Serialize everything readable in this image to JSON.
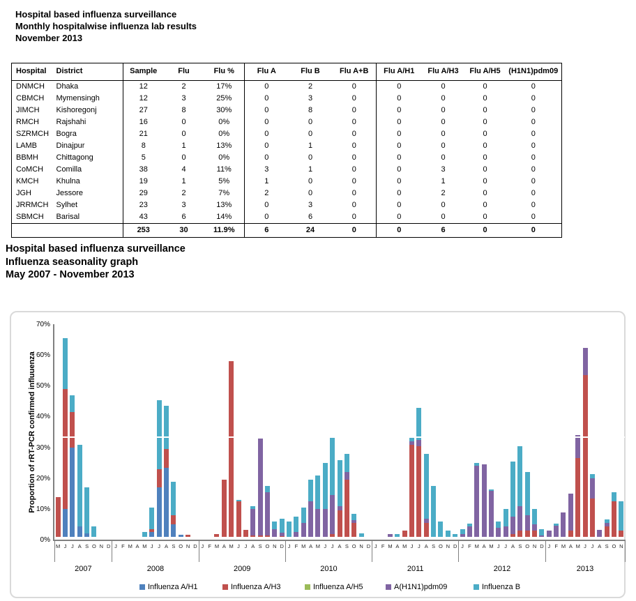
{
  "report": {
    "title_lines": [
      "Hospital based influenza surveillance",
      "Monthly hospitalwise influenza lab results",
      "November 2013"
    ],
    "section2_lines": [
      "Hospital based influenza surveillance",
      "Influenza seasonality graph",
      "May 2007 - November 2013"
    ]
  },
  "table": {
    "headers": [
      "Hospital",
      "District",
      "Sample",
      "Flu",
      "Flu %",
      "Flu A",
      "Flu B",
      "Flu A+B",
      "Flu A/H1",
      "Flu A/H3",
      "Flu A/H5",
      "(H1N1)pdm09"
    ],
    "rows": [
      [
        "DNMCH",
        "Dhaka",
        "12",
        "2",
        "17%",
        "0",
        "2",
        "0",
        "0",
        "0",
        "0",
        "0"
      ],
      [
        "CBMCH",
        "Mymensingh",
        "12",
        "3",
        "25%",
        "0",
        "3",
        "0",
        "0",
        "0",
        "0",
        "0"
      ],
      [
        "JIMCH",
        "Kishoregonj",
        "27",
        "8",
        "30%",
        "0",
        "8",
        "0",
        "0",
        "0",
        "0",
        "0"
      ],
      [
        "RMCH",
        "Rajshahi",
        "16",
        "0",
        "0%",
        "0",
        "0",
        "0",
        "0",
        "0",
        "0",
        "0"
      ],
      [
        "SZRMCH",
        "Bogra",
        "21",
        "0",
        "0%",
        "0",
        "0",
        "0",
        "0",
        "0",
        "0",
        "0"
      ],
      [
        "LAMB",
        "Dinajpur",
        "8",
        "1",
        "13%",
        "0",
        "1",
        "0",
        "0",
        "0",
        "0",
        "0"
      ],
      [
        "BBMH",
        "Chittagong",
        "5",
        "0",
        "0%",
        "0",
        "0",
        "0",
        "0",
        "0",
        "0",
        "0"
      ],
      [
        "CoMCH",
        "Comilla",
        "38",
        "4",
        "11%",
        "3",
        "1",
        "0",
        "0",
        "3",
        "0",
        "0"
      ],
      [
        "KMCH",
        "Khulna",
        "19",
        "1",
        "5%",
        "1",
        "0",
        "0",
        "0",
        "1",
        "0",
        "0"
      ],
      [
        "JGH",
        "Jessore",
        "29",
        "2",
        "7%",
        "2",
        "0",
        "0",
        "0",
        "2",
        "0",
        "0"
      ],
      [
        "JRRMCH",
        "Sylhet",
        "23",
        "3",
        "13%",
        "0",
        "3",
        "0",
        "0",
        "0",
        "0",
        "0"
      ],
      [
        "SBMCH",
        "Barisal",
        "43",
        "6",
        "14%",
        "0",
        "6",
        "0",
        "0",
        "0",
        "0",
        "0"
      ]
    ],
    "total": [
      "",
      "",
      "253",
      "30",
      "11.9%",
      "6",
      "24",
      "0",
      "0",
      "6",
      "0",
      "0"
    ]
  },
  "chart_data": {
    "type": "bar",
    "stacked": true,
    "ylabel": "Proportion of rRT-PCR confirmed influuenza",
    "ylim": [
      0,
      70
    ],
    "yticks": [
      "0%",
      "10%",
      "20%",
      "30%",
      "40%",
      "50%",
      "60%",
      "70%"
    ],
    "grid": false,
    "reference_line_pct": 33.3,
    "legend_position": "bottom",
    "series_names": [
      "Influenza A/H1",
      "Influenza A/H3",
      "Influenza A/H5",
      "A(H1N1)pdm09",
      "Influenza B"
    ],
    "series_colors": [
      "#4F81BD",
      "#C0504D",
      "#9BBB59",
      "#8064A2",
      "#4BACC6"
    ],
    "series_order_note": "values per month are stacked bottom-to-top in series_names order, units = percent",
    "years": [
      {
        "year": "2007",
        "months": [
          "M",
          "J",
          "J",
          "A",
          "S",
          "O",
          "N",
          "D"
        ],
        "values": [
          [
            0,
            13,
            0,
            0,
            0
          ],
          [
            9,
            39,
            0,
            0,
            16.5
          ],
          [
            29,
            11.5,
            0,
            0,
            5.5
          ],
          [
            3.5,
            0,
            0,
            0,
            26.5
          ],
          [
            1.2,
            0,
            0,
            0,
            14.8
          ],
          [
            0,
            0,
            0,
            0,
            3.5
          ],
          [
            0,
            0,
            0,
            0,
            0
          ],
          [
            0,
            0,
            0,
            0,
            0
          ]
        ]
      },
      {
        "year": "2008",
        "months": [
          "J",
          "F",
          "M",
          "A",
          "M",
          "J",
          "J",
          "A",
          "S",
          "O",
          "N",
          "D"
        ],
        "values": [
          [
            0,
            0,
            0,
            0,
            0
          ],
          [
            0,
            0,
            0,
            0,
            0
          ],
          [
            0,
            0,
            0,
            0,
            0
          ],
          [
            0,
            0,
            0,
            0,
            0
          ],
          [
            0,
            0,
            0,
            0,
            1.5
          ],
          [
            1.5,
            1,
            0,
            0,
            7
          ],
          [
            16,
            6,
            0,
            0,
            22.5
          ],
          [
            22.5,
            6,
            0,
            0,
            14
          ],
          [
            4,
            3,
            0,
            0,
            11
          ],
          [
            0.7,
            0,
            0,
            0,
            0
          ],
          [
            0,
            0.7,
            0,
            0,
            0
          ],
          [
            0,
            0,
            0,
            0,
            0
          ]
        ]
      },
      {
        "year": "2009",
        "months": [
          "J",
          "F",
          "M",
          "A",
          "M",
          "J",
          "J",
          "A",
          "S",
          "O",
          "N",
          "D"
        ],
        "values": [
          [
            0,
            0,
            0,
            0,
            0
          ],
          [
            0,
            0,
            0,
            0,
            0
          ],
          [
            0,
            0.8,
            0,
            0,
            0
          ],
          [
            0,
            18.5,
            0,
            0,
            0
          ],
          [
            0,
            57,
            0,
            0,
            0
          ],
          [
            0,
            11.5,
            0,
            0,
            0.5
          ],
          [
            0,
            2.3,
            0,
            0,
            0
          ],
          [
            0,
            0.5,
            0,
            8.5,
            1
          ],
          [
            0,
            0.5,
            0,
            31.5,
            0
          ],
          [
            0,
            0.5,
            0,
            14,
            2
          ],
          [
            0,
            0,
            0,
            2.5,
            2.5
          ],
          [
            0,
            0.3,
            0,
            1,
            4.5
          ]
        ]
      },
      {
        "year": "2010",
        "months": [
          "J",
          "F",
          "M",
          "A",
          "M",
          "J",
          "J",
          "A",
          "S",
          "O",
          "N",
          "D"
        ],
        "values": [
          [
            0,
            0,
            0,
            0,
            5
          ],
          [
            0,
            0,
            0,
            1.5,
            5
          ],
          [
            0,
            0,
            0,
            4.5,
            5
          ],
          [
            0,
            0,
            0,
            11.5,
            7
          ],
          [
            0,
            0,
            0,
            9,
            11
          ],
          [
            0,
            0,
            0,
            9,
            15
          ],
          [
            0,
            1,
            0,
            12.5,
            19
          ],
          [
            0,
            8.5,
            0,
            1.5,
            15
          ],
          [
            0,
            18.5,
            0,
            2.5,
            6
          ],
          [
            0,
            4.5,
            0,
            1,
            2
          ],
          [
            0,
            0,
            0,
            0,
            1.2
          ],
          [
            0,
            0,
            0,
            0,
            0
          ]
        ]
      },
      {
        "year": "2011",
        "months": [
          "J",
          "F",
          "M",
          "A",
          "M",
          "J",
          "J",
          "A",
          "S",
          "O",
          "N",
          "D"
        ],
        "values": [
          [
            0,
            0,
            0,
            0,
            0
          ],
          [
            0,
            0,
            0,
            0,
            0
          ],
          [
            0,
            0,
            0,
            0.8,
            0
          ],
          [
            0,
            0,
            0,
            0,
            1
          ],
          [
            0,
            2,
            0,
            0,
            0
          ],
          [
            0,
            30,
            0,
            1,
            1.5
          ],
          [
            0,
            29.5,
            0,
            2,
            10.5
          ],
          [
            0,
            4.5,
            0,
            1.5,
            21
          ],
          [
            0,
            0,
            0,
            0,
            16.5
          ],
          [
            0,
            0,
            0,
            0,
            5
          ],
          [
            0,
            0,
            0,
            0,
            2
          ],
          [
            0,
            0,
            0,
            0,
            0.8
          ]
        ]
      },
      {
        "year": "2012",
        "months": [
          "J",
          "F",
          "M",
          "A",
          "M",
          "J",
          "J",
          "A",
          "S",
          "O",
          "N",
          "D"
        ],
        "values": [
          [
            0,
            0,
            0,
            1,
            1.5
          ],
          [
            0,
            0,
            0,
            3.5,
            0.7
          ],
          [
            0,
            0,
            0,
            23,
            1
          ],
          [
            0,
            0,
            0,
            23.5,
            0
          ],
          [
            0,
            0,
            0,
            15,
            0.5
          ],
          [
            0,
            0,
            0,
            3,
            2
          ],
          [
            0,
            0,
            0,
            3.5,
            5.5
          ],
          [
            0,
            1,
            0,
            5.5,
            18
          ],
          [
            0,
            2,
            0,
            8,
            19.5
          ],
          [
            0,
            2,
            0,
            5,
            14
          ],
          [
            0,
            2,
            0,
            2,
            5
          ],
          [
            0,
            0,
            0,
            0.5,
            2
          ]
        ]
      },
      {
        "year": "2013",
        "months": [
          "J",
          "F",
          "M",
          "A",
          "M",
          "J",
          "J",
          "A",
          "S",
          "O",
          "N"
        ],
        "values": [
          [
            0,
            0,
            0,
            2,
            0
          ],
          [
            0,
            0,
            0,
            3.7,
            0.5
          ],
          [
            0,
            0,
            0,
            8,
            0
          ],
          [
            0,
            2,
            0,
            12,
            0
          ],
          [
            0,
            25.5,
            0,
            7.5,
            0
          ],
          [
            0,
            52.5,
            0,
            9,
            0
          ],
          [
            0,
            12.5,
            0,
            6.5,
            1.5
          ],
          [
            0,
            0,
            0,
            2.3,
            0
          ],
          [
            0,
            3.3,
            0,
            1.2,
            1.2
          ],
          [
            0,
            11.5,
            0,
            0,
            3
          ],
          [
            0,
            2,
            0,
            0,
            9.5
          ]
        ]
      }
    ]
  }
}
